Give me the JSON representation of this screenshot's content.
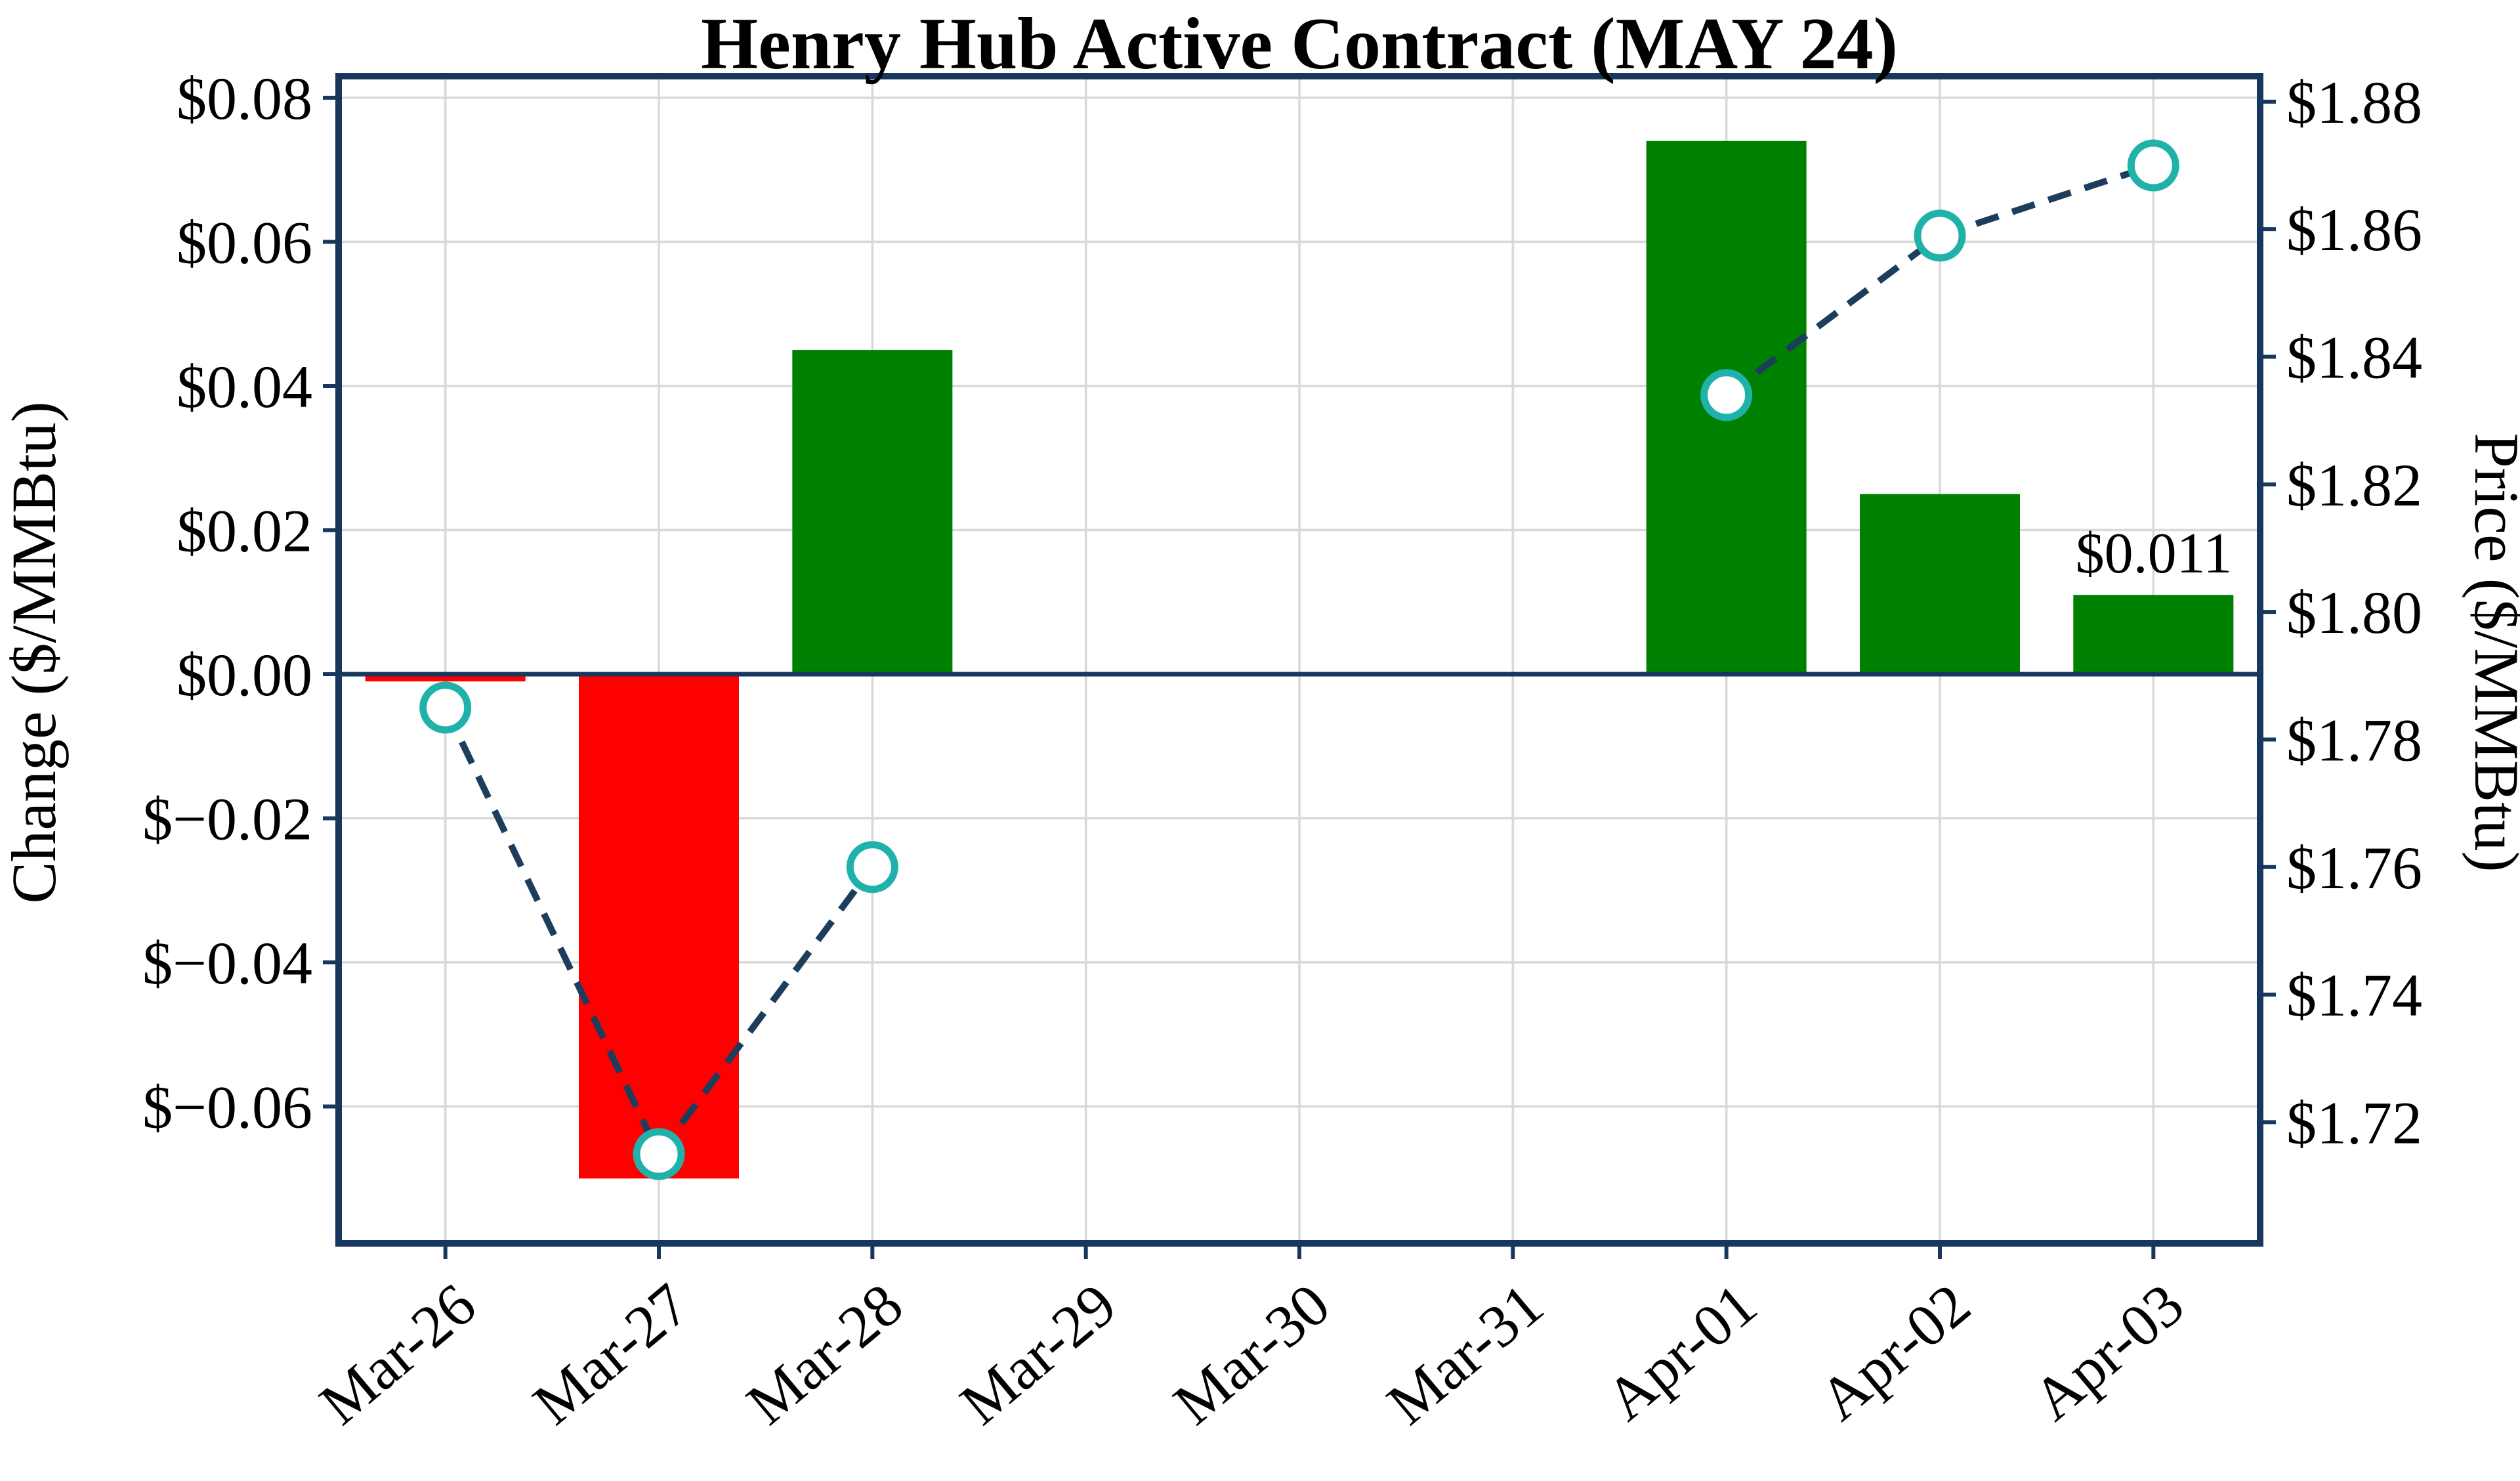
{
  "chart_data": {
    "type": "combo-bar-line",
    "title": "Henry Hub Active Contract (MAY 24)",
    "categories": [
      "Mar-26",
      "Mar-27",
      "Mar-28",
      "Mar-29",
      "Mar-30",
      "Mar-31",
      "Apr-01",
      "Apr-02",
      "Apr-03"
    ],
    "series": [
      {
        "name": "Daily Change",
        "type": "bar",
        "axis": "left",
        "values": [
          -0.001,
          -0.07,
          0.045,
          null,
          null,
          null,
          0.074,
          0.025,
          0.011
        ],
        "positive_color": "#008000",
        "negative_color": "#ff0000"
      },
      {
        "name": "Price",
        "type": "line",
        "axis": "right",
        "values": [
          1.785,
          1.715,
          1.76,
          null,
          null,
          null,
          1.834,
          1.859,
          1.87
        ],
        "line_color": "#1d3d5c",
        "dashed": true,
        "marker_fill": "#ffffff",
        "marker_edge": "#20b2aa"
      }
    ],
    "left_axis": {
      "label": "Change ($/MMBtu)",
      "min": -0.079,
      "max": 0.083,
      "ticks": [
        {
          "value": 0.08,
          "label": "$0.08"
        },
        {
          "value": 0.06,
          "label": "$0.06"
        },
        {
          "value": 0.04,
          "label": "$0.04"
        },
        {
          "value": 0.02,
          "label": "$0.02"
        },
        {
          "value": 0.0,
          "label": "$0.00"
        },
        {
          "value": -0.02,
          "label": "$−0.02"
        },
        {
          "value": -0.04,
          "label": "$−0.04"
        },
        {
          "value": -0.06,
          "label": "$−0.06"
        }
      ]
    },
    "right_axis": {
      "label": "Price ($/MMBtu)",
      "min": 1.701,
      "max": 1.884,
      "ticks": [
        {
          "value": 1.88,
          "label": "$1.88"
        },
        {
          "value": 1.86,
          "label": "$1.86"
        },
        {
          "value": 1.84,
          "label": "$1.84"
        },
        {
          "value": 1.82,
          "label": "$1.82"
        },
        {
          "value": 1.8,
          "label": "$1.80"
        },
        {
          "value": 1.78,
          "label": "$1.78"
        },
        {
          "value": 1.76,
          "label": "$1.76"
        },
        {
          "value": 1.74,
          "label": "$1.74"
        },
        {
          "value": 1.72,
          "label": "$1.72"
        }
      ]
    },
    "annotation": {
      "text": "$0.011",
      "category": "Apr-03"
    },
    "grid": true,
    "legend": "none",
    "style": {
      "grid_color": "#d9d9d9",
      "spine_color": "#17375e",
      "zero_line_color": "#17375e",
      "text_color": "#000000",
      "background": "#ffffff"
    }
  }
}
